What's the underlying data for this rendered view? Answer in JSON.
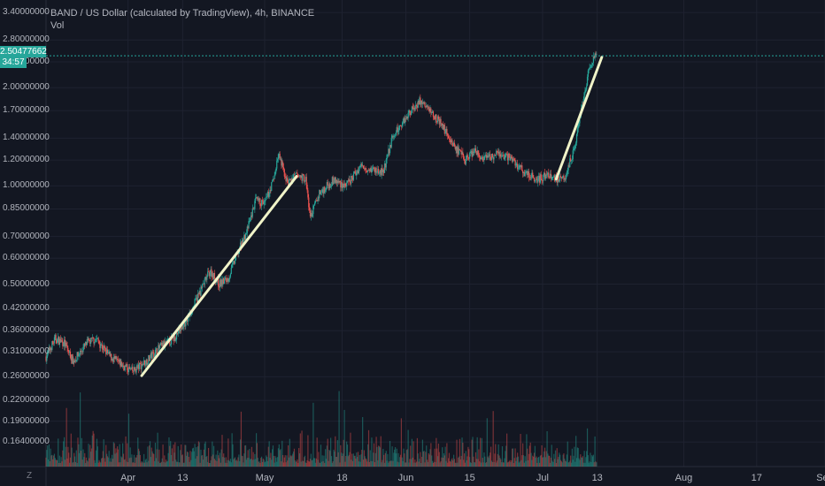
{
  "legend": {
    "title": "BAND / US Dollar (calculated by TradingView), 4h, BINANCE",
    "vol_label": "Vol"
  },
  "current": {
    "price_label": "2.50477662",
    "countdown": "34:57"
  },
  "footer": {
    "zoom_label": "Z"
  },
  "colors": {
    "up": "#26a69a",
    "down": "#ef5350",
    "trend": "#f0f3c8",
    "grid": "#1e2230",
    "bg": "#131722",
    "price_line": "#26a69a"
  },
  "chart_data": {
    "type": "candlestick",
    "title": "BAND / US Dollar (calculated by TradingView), 4h, BINANCE",
    "y_scale": "log",
    "ylim": [
      0.145,
      3.6
    ],
    "y_ticks": [
      "3.40000000",
      "2.80000000",
      "2.40000000",
      "2.00000000",
      "1.70000000",
      "1.40000000",
      "1.20000000",
      "1.00000000",
      "0.85000000",
      "0.70000000",
      "0.60000000",
      "0.50000000",
      "0.42000000",
      "0.36000000",
      "0.31000000",
      "0.26000000",
      "0.22000000",
      "0.19000000",
      "0.16400000"
    ],
    "x_ticks": [
      "Apr",
      "13",
      "May",
      "18",
      "Jun",
      "15",
      "Jul",
      "13",
      "Aug",
      "17",
      "Sep"
    ],
    "x_tick_dates": [
      "2020-04-01",
      "2020-04-13",
      "2020-05-01",
      "2020-05-18",
      "2020-06-01",
      "2020-06-15",
      "2020-07-01",
      "2020-07-13",
      "2020-08-01",
      "2020-08-17",
      "2020-09-01"
    ],
    "xlim": [
      "2020-03-14",
      "2020-09-01"
    ],
    "price_anchors": [
      [
        "2020-03-14",
        0.3
      ],
      [
        "2020-03-16",
        0.34
      ],
      [
        "2020-03-18",
        0.33
      ],
      [
        "2020-03-20",
        0.29
      ],
      [
        "2020-03-23",
        0.33
      ],
      [
        "2020-03-25",
        0.34
      ],
      [
        "2020-03-28",
        0.3
      ],
      [
        "2020-03-31",
        0.28
      ],
      [
        "2020-04-02",
        0.27
      ],
      [
        "2020-04-05",
        0.29
      ],
      [
        "2020-04-08",
        0.32
      ],
      [
        "2020-04-11",
        0.34
      ],
      [
        "2020-04-14",
        0.39
      ],
      [
        "2020-04-17",
        0.48
      ],
      [
        "2020-04-19",
        0.55
      ],
      [
        "2020-04-21",
        0.5
      ],
      [
        "2020-04-23",
        0.52
      ],
      [
        "2020-04-25",
        0.62
      ],
      [
        "2020-04-27",
        0.72
      ],
      [
        "2020-04-29",
        0.9
      ],
      [
        "2020-05-01",
        0.88
      ],
      [
        "2020-05-03",
        1.05
      ],
      [
        "2020-05-04",
        1.25
      ],
      [
        "2020-05-06",
        1.02
      ],
      [
        "2020-05-08",
        1.08
      ],
      [
        "2020-05-10",
        1.05
      ],
      [
        "2020-05-11",
        0.8
      ],
      [
        "2020-05-13",
        0.95
      ],
      [
        "2020-05-16",
        1.04
      ],
      [
        "2020-05-19",
        1.0
      ],
      [
        "2020-05-22",
        1.15
      ],
      [
        "2020-05-25",
        1.12
      ],
      [
        "2020-05-27",
        1.1
      ],
      [
        "2020-05-29",
        1.4
      ],
      [
        "2020-05-31",
        1.55
      ],
      [
        "2020-06-02",
        1.7
      ],
      [
        "2020-06-04",
        1.82
      ],
      [
        "2020-06-06",
        1.72
      ],
      [
        "2020-06-08",
        1.6
      ],
      [
        "2020-06-10",
        1.45
      ],
      [
        "2020-06-12",
        1.3
      ],
      [
        "2020-06-14",
        1.2
      ],
      [
        "2020-06-16",
        1.28
      ],
      [
        "2020-06-18",
        1.2
      ],
      [
        "2020-06-21",
        1.25
      ],
      [
        "2020-06-24",
        1.22
      ],
      [
        "2020-06-27",
        1.1
      ],
      [
        "2020-06-30",
        1.05
      ],
      [
        "2020-07-02",
        1.08
      ],
      [
        "2020-07-04",
        1.05
      ],
      [
        "2020-07-06",
        1.08
      ],
      [
        "2020-07-08",
        1.3
      ],
      [
        "2020-07-09",
        1.6
      ],
      [
        "2020-07-10",
        1.85
      ],
      [
        "2020-07-11",
        2.2
      ],
      [
        "2020-07-12",
        2.4
      ],
      [
        "2020-07-13",
        2.55
      ]
    ],
    "volume_note": "bottom volume bars",
    "last_price": 2.50477662,
    "trendlines": [
      {
        "from": [
          "2020-04-04",
          0.262
        ],
        "to": [
          "2020-05-08",
          1.07
        ]
      },
      {
        "from": [
          "2020-07-04",
          1.05
        ],
        "to": [
          "2020-07-14",
          2.48
        ]
      }
    ]
  }
}
